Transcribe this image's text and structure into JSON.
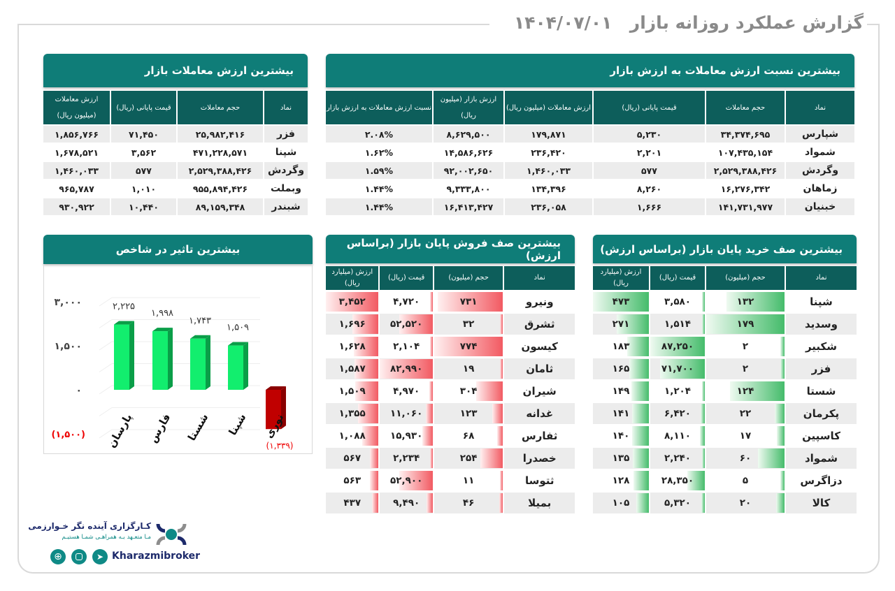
{
  "header": {
    "title": "گزارش عملکرد روزانه بازار",
    "date": "۱۴۰۴/۰۷/۰۱"
  },
  "ratio_table": {
    "title": "بیشترین نسبت ارزش معاملات به ارزش بازار",
    "columns": [
      "نماد",
      "حجم معاملات",
      "قیمت پایانی (ریال)",
      "ارزش معاملات (میلیون ریال)",
      "ارزش بازار (میلیون ریال)",
      "نسبت ارزش معاملات به ارزش بازار"
    ],
    "rows": [
      [
        "شپارس",
        "۳۴,۳۷۴,۶۹۵",
        "۵,۲۳۰",
        "۱۷۹,۸۷۱",
        "۸,۶۲۹,۵۰۰",
        "۲.۰۸%"
      ],
      [
        "شمواد",
        "۱۰۷,۴۳۵,۱۵۴",
        "۲,۲۰۱",
        "۲۳۶,۴۲۰",
        "۱۴,۵۸۶,۶۲۶",
        "۱.۶۲%"
      ],
      [
        "وگردش",
        "۲,۵۲۹,۳۸۸,۴۲۶",
        "۵۷۷",
        "۱,۴۶۰,۰۳۳",
        "۹۲,۰۰۲,۶۵۰",
        "۱.۵۹%"
      ],
      [
        "زماهان",
        "۱۶,۲۷۶,۳۴۲",
        "۸,۲۶۰",
        "۱۳۴,۳۹۶",
        "۹,۳۳۳,۸۰۰",
        "۱.۴۴%"
      ],
      [
        "خبنیان",
        "۱۴۱,۷۳۱,۹۷۷",
        "۱,۶۶۶",
        "۲۳۶,۰۵۸",
        "۱۶,۴۱۳,۴۲۷",
        "۱.۴۴%"
      ]
    ]
  },
  "value_table": {
    "title": "بیشترین ارزش معاملات بازار",
    "columns": [
      "نماد",
      "حجم معاملات",
      "قیمت پایانی (ریال)",
      "ارزش معاملات (میلیون ریال)"
    ],
    "rows": [
      [
        "فزر",
        "۲۵,۹۸۲,۴۱۶",
        "۷۱,۴۵۰",
        "۱,۸۵۶,۷۶۶"
      ],
      [
        "شپنا",
        "۴۷۱,۲۲۸,۵۷۱",
        "۳,۵۶۲",
        "۱,۶۷۸,۵۲۱"
      ],
      [
        "وگردش",
        "۲,۵۲۹,۳۸۸,۴۲۶",
        "۵۷۷",
        "۱,۴۶۰,۰۳۳"
      ],
      [
        "وبملت",
        "۹۵۵,۸۹۴,۴۲۶",
        "۱,۰۱۰",
        "۹۶۵,۷۸۷"
      ],
      [
        "شبندر",
        "۸۹,۱۵۹,۳۴۸",
        "۱۰,۴۴۰",
        "۹۳۰,۹۲۲"
      ]
    ]
  },
  "sell_queue": {
    "title": "بیشترین صف فروش پایان بازار (براساس ارزش)",
    "columns": [
      "نماد",
      "حجم (میلیون)",
      "قیمت (ریال)",
      "ارزش (میلیارد ریال)"
    ],
    "rows": [
      [
        "ونیرو",
        "۷۳۱",
        "۴,۷۲۰",
        "۳,۴۵۲"
      ],
      [
        "ثشرق",
        "۳۲",
        "۵۲,۵۲۰",
        "۱,۶۹۶"
      ],
      [
        "کیسون",
        "۷۷۴",
        "۲,۱۰۴",
        "۱,۶۲۸"
      ],
      [
        "ثامان",
        "۱۹",
        "۸۲,۹۹۰",
        "۱,۵۸۷"
      ],
      [
        "شیران",
        "۳۰۴",
        "۴,۹۷۰",
        "۱,۵۰۹"
      ],
      [
        "غدانه",
        "۱۲۳",
        "۱۱,۰۶۰",
        "۱,۳۵۵"
      ],
      [
        "ثفارس",
        "۶۸",
        "۱۵,۹۳۰",
        "۱,۰۸۸"
      ],
      [
        "خصدرا",
        "۲۵۴",
        "۲,۲۳۴",
        "۵۶۷"
      ],
      [
        "ثتوسا",
        "۱۱",
        "۵۲,۹۰۰",
        "۵۶۳"
      ],
      [
        "بمیلا",
        "۴۶",
        "۹,۴۹۰",
        "۴۳۷"
      ]
    ]
  },
  "buy_queue": {
    "title": "بیشترین صف خرید پایان بازار (براساس ارزش)",
    "columns": [
      "نماد",
      "حجم (میلیون)",
      "قیمت (ریال)",
      "ارزش (میلیارد ریال)"
    ],
    "rows": [
      [
        "شپنا",
        "۱۳۲",
        "۳,۵۸۰",
        "۴۷۳"
      ],
      [
        "وسدید",
        "۱۷۹",
        "۱,۵۱۴",
        "۲۷۱"
      ],
      [
        "شکبیر",
        "۲",
        "۸۷,۲۵۰",
        "۱۸۳"
      ],
      [
        "فزر",
        "۲",
        "۷۱,۷۰۰",
        "۱۶۵"
      ],
      [
        "شستا",
        "۱۲۴",
        "۱,۲۰۴",
        "۱۴۹"
      ],
      [
        "پکرمان",
        "۲۲",
        "۶,۴۲۰",
        "۱۴۱"
      ],
      [
        "کاسپین",
        "۱۷",
        "۸,۱۱۰",
        "۱۴۰"
      ],
      [
        "شمواد",
        "۶۰",
        "۲,۲۴۰",
        "۱۳۵"
      ],
      [
        "دزاگرس",
        "۵",
        "۲۸,۳۵۰",
        "۱۲۸"
      ],
      [
        "کالا",
        "۲۰",
        "۵,۳۲۰",
        "۱۰۵"
      ]
    ]
  },
  "chart_data": {
    "type": "bar",
    "title": "بیشترین تاثیر در شاخص",
    "categories": [
      "پارسان",
      "فارس",
      "شستا",
      "شپنا",
      "نوری"
    ],
    "values": [
      2225,
      1998,
      1743,
      1509,
      -1339
    ],
    "value_labels": [
      "۲,۲۲۵",
      "۱,۹۹۸",
      "۱,۷۴۳",
      "۱,۵۰۹",
      "(۱,۳۳۹)"
    ],
    "yticks": [
      3000,
      1500,
      0,
      -1500
    ],
    "ytick_labels": [
      "۳,۰۰۰",
      "۱,۵۰۰",
      "۰",
      "(۱,۵۰۰)"
    ],
    "ylim": [
      -1500,
      3000
    ],
    "colors": {
      "positive": "#12ee6e",
      "negative": "#c00000"
    }
  },
  "footer": {
    "company": "کـارگزاری آینده نگر خـوارزمی",
    "slogan": "مـا متعـهد بـه همراهـی شمـا هستیـم",
    "handle": "Kharazmibroker"
  }
}
